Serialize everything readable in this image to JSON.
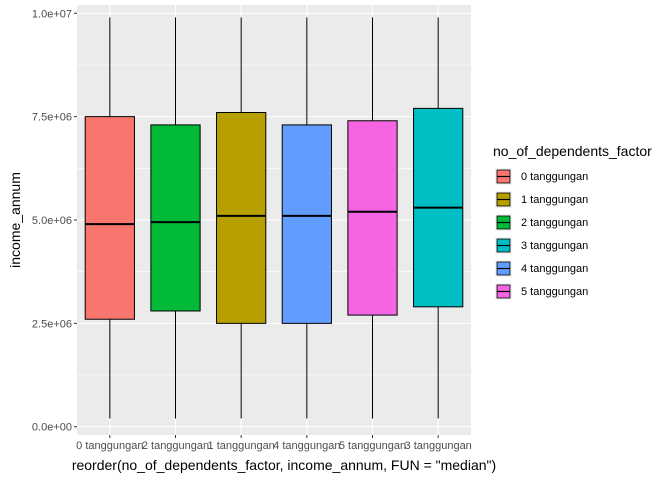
{
  "chart_data": {
    "type": "box",
    "xlabel": "reorder(no_of_dependents_factor, income_annum, FUN = \"median\")",
    "ylabel": "income_annum",
    "ylim": [
      -200000,
      10200000
    ],
    "yticks": [
      0,
      2500000,
      5000000,
      7500000,
      10000000
    ],
    "ytick_labels": [
      "0.0e+00",
      "2.5e+06",
      "5.0e+06",
      "7.5e+06",
      "1.0e+07"
    ],
    "grid": true,
    "categories": [
      "0 tanggungan",
      "2 tanggungan",
      "1 tanggungan",
      "4 tanggungan",
      "5 tanggungan",
      "3 tanggungan"
    ],
    "boxes": [
      {
        "category": "0 tanggungan",
        "min": 200000,
        "q1": 2600000,
        "median": 4900000,
        "q3": 7500000,
        "max": 9900000,
        "color": "#F8766D"
      },
      {
        "category": "2 tanggungan",
        "min": 200000,
        "q1": 2800000,
        "median": 4950000,
        "q3": 7300000,
        "max": 9900000,
        "color": "#00BA38"
      },
      {
        "category": "1 tanggungan",
        "min": 200000,
        "q1": 2500000,
        "median": 5100000,
        "q3": 7600000,
        "max": 9900000,
        "color": "#B79F00"
      },
      {
        "category": "4 tanggungan",
        "min": 200000,
        "q1": 2500000,
        "median": 5100000,
        "q3": 7300000,
        "max": 9900000,
        "color": "#619CFF"
      },
      {
        "category": "5 tanggungan",
        "min": 200000,
        "q1": 2700000,
        "median": 5200000,
        "q3": 7400000,
        "max": 9900000,
        "color": "#F564E3"
      },
      {
        "category": "3 tanggungan",
        "min": 200000,
        "q1": 2900000,
        "median": 5300000,
        "q3": 7700000,
        "max": 9900000,
        "color": "#00BFC4"
      }
    ],
    "legend": {
      "title": "no_of_dependents_factor",
      "placement": "right",
      "items": [
        {
          "label": "0 tanggungan",
          "color": "#F8766D"
        },
        {
          "label": "1 tanggungan",
          "color": "#B79F00"
        },
        {
          "label": "2 tanggungan",
          "color": "#00BA38"
        },
        {
          "label": "3 tanggungan",
          "color": "#00BFC4"
        },
        {
          "label": "4 tanggungan",
          "color": "#619CFF"
        },
        {
          "label": "5 tanggungan",
          "color": "#F564E3"
        }
      ]
    },
    "panel_color": "#EBEBEB",
    "grid_color": "#FFFFFF"
  }
}
